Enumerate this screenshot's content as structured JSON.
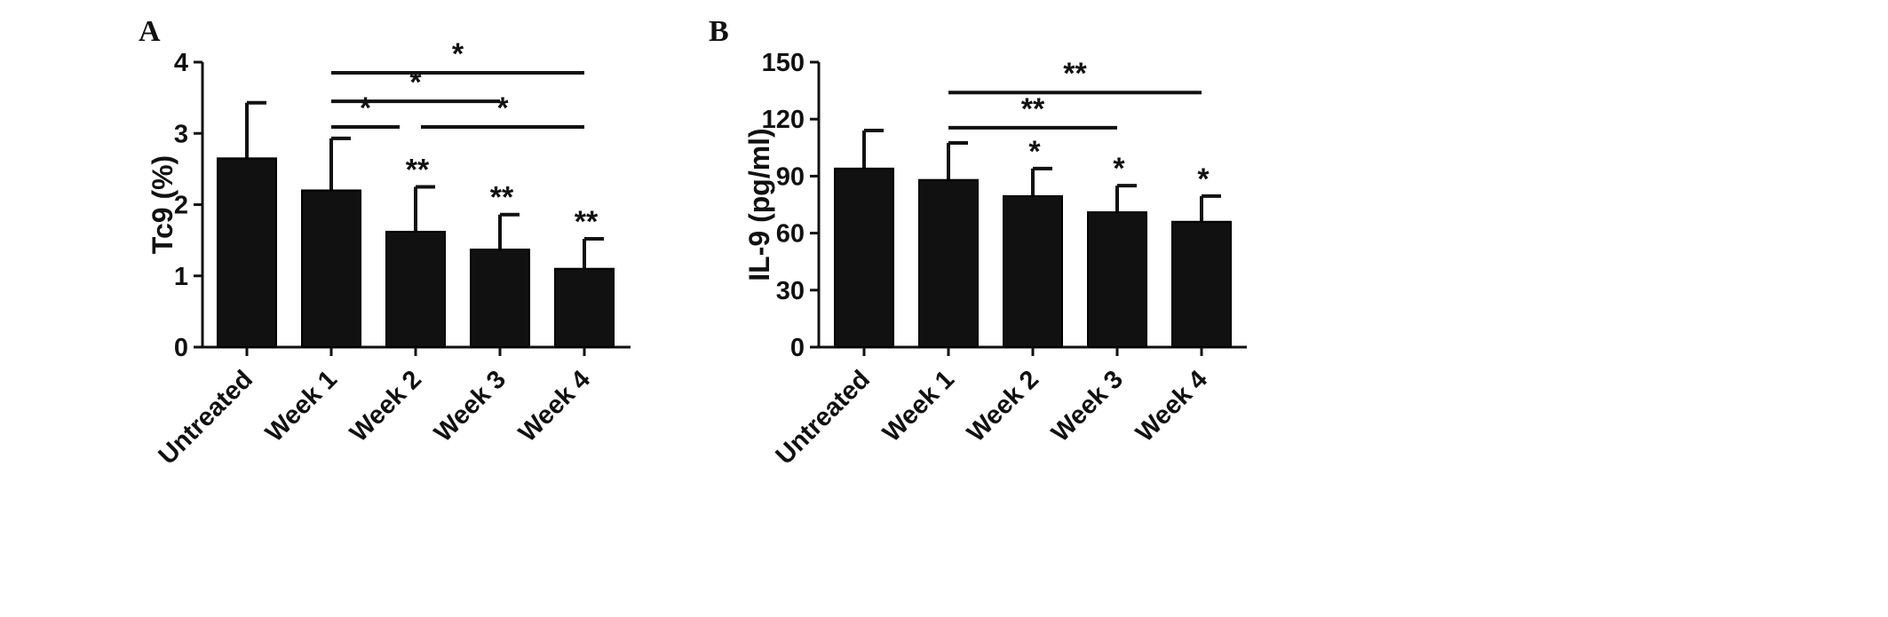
{
  "chart_data": [
    {
      "type": "bar",
      "panel_label": "A",
      "title": "",
      "xlabel": "",
      "ylabel": "Tc9 (%)",
      "ylim": [
        0,
        4
      ],
      "yticks": [
        "0",
        "1",
        "2",
        "3",
        "4"
      ],
      "categories": [
        "Untreated",
        "Week 1",
        "Week 2",
        "Week 3",
        "Week 4"
      ],
      "values": [
        2.65,
        2.2,
        1.62,
        1.37,
        1.1
      ],
      "error_upper": [
        0.78,
        0.73,
        0.63,
        0.49,
        0.42
      ],
      "bar_labels": [
        "",
        "",
        "**",
        "**",
        "**"
      ],
      "comparisons": [
        {
          "from": "Week 1",
          "to": "Week 4",
          "label": "*",
          "y": 3.85
        },
        {
          "from": "Week 1",
          "to": "Week 3",
          "label": "*",
          "y": 3.45
        },
        {
          "from": "Week 1",
          "to": "Week 2",
          "label": "*",
          "y": 3.09
        },
        {
          "from": "Week 2",
          "to": "Week 4",
          "label": "*",
          "y": 3.09
        }
      ],
      "bar_color": "#111111"
    },
    {
      "type": "bar",
      "panel_label": "B",
      "title": "",
      "xlabel": "",
      "ylabel": "IL-9 (pg/ml)",
      "ylim": [
        0,
        150
      ],
      "yticks": [
        "0",
        "30",
        "60",
        "90",
        "120",
        "150"
      ],
      "categories": [
        "Untreated",
        "Week 1",
        "Week 2",
        "Week 3",
        "Week 4"
      ],
      "values": [
        94,
        88,
        79.5,
        71,
        66
      ],
      "error_upper": [
        20,
        19.5,
        14.5,
        14,
        13.5
      ],
      "bar_labels": [
        "",
        "",
        "*",
        "*",
        "*"
      ],
      "comparisons": [
        {
          "from": "Week 1",
          "to": "Week 4",
          "label": "**",
          "y": 134
        },
        {
          "from": "Week 1",
          "to": "Week 3",
          "label": "**",
          "y": 115.5
        }
      ],
      "bar_color": "#111111"
    }
  ]
}
